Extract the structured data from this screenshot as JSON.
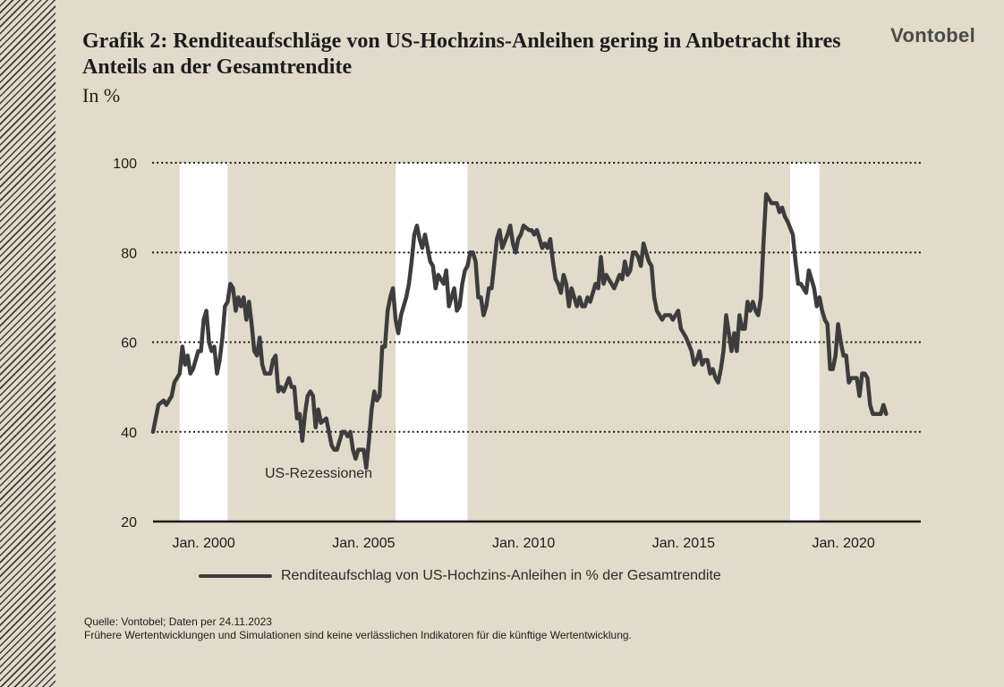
{
  "title": "Grafik 2: Renditeaufschläge von US-Hochzins-Anleihen gering in Anbetracht ihres Anteils an der Gesamtrendite",
  "subtitle": "In %",
  "logo": "Vontobel",
  "recession_label": "US-Rezessionen",
  "legend": {
    "series_label": "Renditeaufschlag von US-Hochzins-Anleihen in % der Gesamtrendite"
  },
  "source": {
    "line1": "Quelle: Vontobel; Daten per 24.11.2023",
    "line2": "Frühere Wertentwicklungen und Simulationen sind keine verlässlichen Indikatoren für die künftige Wertentwicklung."
  },
  "colors": {
    "background": "#e0dbca",
    "line": "#3d3d3d",
    "recession": "#ffffff",
    "grid": "#1c1c1c"
  },
  "chart_data": {
    "type": "line",
    "ylim": [
      20,
      100
    ],
    "yticks": [
      20,
      40,
      60,
      80,
      100
    ],
    "grid": "horizontal dotted",
    "legend_position": "bottom",
    "xlim": [
      "1998-06",
      "2022-06"
    ],
    "xticks": [
      {
        "date": "2000-01",
        "label": "Jan. 2000"
      },
      {
        "date": "2005-01",
        "label": "Jan. 2005"
      },
      {
        "date": "2010-01",
        "label": "Jan. 2010"
      },
      {
        "date": "2015-01",
        "label": "Jan. 2015"
      },
      {
        "date": "2020-01",
        "label": "Jan. 2020"
      }
    ],
    "recessions": [
      {
        "start": "1999-04",
        "end": "2000-10"
      },
      {
        "start": "2006-01",
        "end": "2008-04"
      },
      {
        "start": "2018-05",
        "end": "2019-04"
      }
    ],
    "series": [
      {
        "name": "Renditeaufschlag von US-Hochzins-Anleihen in % der Gesamtrendite",
        "points": [
          [
            "1998-06",
            40
          ],
          [
            "1998-08",
            46
          ],
          [
            "1998-10",
            47
          ],
          [
            "1998-11",
            46
          ],
          [
            "1999-01",
            48
          ],
          [
            "1999-02",
            51
          ],
          [
            "1999-04",
            53
          ],
          [
            "1999-05",
            59
          ],
          [
            "1999-06",
            55
          ],
          [
            "1999-07",
            57
          ],
          [
            "1999-08",
            53
          ],
          [
            "1999-09",
            54
          ],
          [
            "1999-11",
            58
          ],
          [
            "1999-12",
            58
          ],
          [
            "2000-01",
            65
          ],
          [
            "2000-02",
            67
          ],
          [
            "2000-03",
            60
          ],
          [
            "2000-04",
            58
          ],
          [
            "2000-05",
            59
          ],
          [
            "2000-06",
            53
          ],
          [
            "2000-07",
            56
          ],
          [
            "2000-08",
            61
          ],
          [
            "2000-09",
            68
          ],
          [
            "2000-10",
            69
          ],
          [
            "2000-11",
            73
          ],
          [
            "2000-12",
            72
          ],
          [
            "2001-01",
            67
          ],
          [
            "2001-02",
            70
          ],
          [
            "2001-03",
            68
          ],
          [
            "2001-04",
            70
          ],
          [
            "2001-05",
            65
          ],
          [
            "2001-06",
            69
          ],
          [
            "2001-07",
            64
          ],
          [
            "2001-08",
            58
          ],
          [
            "2001-09",
            57
          ],
          [
            "2001-10",
            61
          ],
          [
            "2001-11",
            55
          ],
          [
            "2001-12",
            53
          ],
          [
            "2002-02",
            53
          ],
          [
            "2002-03",
            56
          ],
          [
            "2002-04",
            57
          ],
          [
            "2002-05",
            49
          ],
          [
            "2002-06",
            50
          ],
          [
            "2002-07",
            49
          ],
          [
            "2002-09",
            52
          ],
          [
            "2002-10",
            50
          ],
          [
            "2002-11",
            50
          ],
          [
            "2002-12",
            43
          ],
          [
            "2003-01",
            44
          ],
          [
            "2003-02",
            38
          ],
          [
            "2003-03",
            44
          ],
          [
            "2003-04",
            48
          ],
          [
            "2003-05",
            49
          ],
          [
            "2003-06",
            48
          ],
          [
            "2003-07",
            41
          ],
          [
            "2003-08",
            45
          ],
          [
            "2003-09",
            42
          ],
          [
            "2003-11",
            43
          ],
          [
            "2003-12",
            40
          ],
          [
            "2004-01",
            37
          ],
          [
            "2004-02",
            36
          ],
          [
            "2004-03",
            36
          ],
          [
            "2004-04",
            38
          ],
          [
            "2004-05",
            40
          ],
          [
            "2004-06",
            40
          ],
          [
            "2004-07",
            39
          ],
          [
            "2004-08",
            40
          ],
          [
            "2004-09",
            36
          ],
          [
            "2004-10",
            34
          ],
          [
            "2004-11",
            36
          ],
          [
            "2005-01",
            36
          ],
          [
            "2005-02",
            32
          ],
          [
            "2005-03",
            38
          ],
          [
            "2005-04",
            45
          ],
          [
            "2005-05",
            49
          ],
          [
            "2005-06",
            47
          ],
          [
            "2005-07",
            48
          ],
          [
            "2005-08",
            59
          ],
          [
            "2005-09",
            59
          ],
          [
            "2005-10",
            67
          ],
          [
            "2005-11",
            70
          ],
          [
            "2005-12",
            72
          ],
          [
            "2006-01",
            65
          ],
          [
            "2006-02",
            62
          ],
          [
            "2006-03",
            66
          ],
          [
            "2006-05",
            70
          ],
          [
            "2006-06",
            73
          ],
          [
            "2006-07",
            78
          ],
          [
            "2006-08",
            84
          ],
          [
            "2006-09",
            86
          ],
          [
            "2006-10",
            83
          ],
          [
            "2006-11",
            81
          ],
          [
            "2006-12",
            84
          ],
          [
            "2007-01",
            81
          ],
          [
            "2007-02",
            78
          ],
          [
            "2007-03",
            77
          ],
          [
            "2007-04",
            72
          ],
          [
            "2007-05",
            75
          ],
          [
            "2007-06",
            74
          ],
          [
            "2007-07",
            73
          ],
          [
            "2007-08",
            76
          ],
          [
            "2007-09",
            68
          ],
          [
            "2007-10",
            70
          ],
          [
            "2007-11",
            72
          ],
          [
            "2007-12",
            67
          ],
          [
            "2008-01",
            68
          ],
          [
            "2008-02",
            73
          ],
          [
            "2008-03",
            76
          ],
          [
            "2008-04",
            77
          ],
          [
            "2008-05",
            80
          ],
          [
            "2008-06",
            80
          ],
          [
            "2008-07",
            78
          ],
          [
            "2008-08",
            70
          ],
          [
            "2008-09",
            70
          ],
          [
            "2008-10",
            66
          ],
          [
            "2008-11",
            68
          ],
          [
            "2008-12",
            72
          ],
          [
            "2009-01",
            72
          ],
          [
            "2009-03",
            83
          ],
          [
            "2009-04",
            85
          ],
          [
            "2009-05",
            81
          ],
          [
            "2009-07",
            84
          ],
          [
            "2009-08",
            86
          ],
          [
            "2009-09",
            82
          ],
          [
            "2009-10",
            80
          ],
          [
            "2009-11",
            83
          ],
          [
            "2009-12",
            84
          ],
          [
            "2010-01",
            86
          ],
          [
            "2010-03",
            85
          ],
          [
            "2010-04",
            85
          ],
          [
            "2010-05",
            84
          ],
          [
            "2010-06",
            85
          ],
          [
            "2010-08",
            81
          ],
          [
            "2010-09",
            82
          ],
          [
            "2010-10",
            81
          ],
          [
            "2010-11",
            83
          ],
          [
            "2010-12",
            78
          ],
          [
            "2011-01",
            74
          ],
          [
            "2011-02",
            73
          ],
          [
            "2011-03",
            71
          ],
          [
            "2011-04",
            75
          ],
          [
            "2011-05",
            73
          ],
          [
            "2011-06",
            68
          ],
          [
            "2011-07",
            72
          ],
          [
            "2011-08",
            70
          ],
          [
            "2011-09",
            68
          ],
          [
            "2011-10",
            70
          ],
          [
            "2011-11",
            68
          ],
          [
            "2011-12",
            68
          ],
          [
            "2012-01",
            70
          ],
          [
            "2012-02",
            69
          ],
          [
            "2012-04",
            73
          ],
          [
            "2012-05",
            72
          ],
          [
            "2012-06",
            79
          ],
          [
            "2012-07",
            73
          ],
          [
            "2012-08",
            75
          ],
          [
            "2012-09",
            74
          ],
          [
            "2012-10",
            73
          ],
          [
            "2012-11",
            72
          ],
          [
            "2013-01",
            75
          ],
          [
            "2013-02",
            74
          ],
          [
            "2013-03",
            78
          ],
          [
            "2013-04",
            75
          ],
          [
            "2013-05",
            76
          ],
          [
            "2013-06",
            80
          ],
          [
            "2013-07",
            80
          ],
          [
            "2013-08",
            79
          ],
          [
            "2013-09",
            77
          ],
          [
            "2013-10",
            82
          ],
          [
            "2013-11",
            80
          ],
          [
            "2013-12",
            78
          ],
          [
            "2014-01",
            77
          ],
          [
            "2014-02",
            70
          ],
          [
            "2014-03",
            67
          ],
          [
            "2014-04",
            66
          ],
          [
            "2014-05",
            65
          ],
          [
            "2014-06",
            66
          ],
          [
            "2014-07",
            66
          ],
          [
            "2014-08",
            66
          ],
          [
            "2014-09",
            65
          ],
          [
            "2014-10",
            66
          ],
          [
            "2014-11",
            67
          ],
          [
            "2014-12",
            63
          ],
          [
            "2015-01",
            62
          ],
          [
            "2015-02",
            61
          ],
          [
            "2015-04",
            58
          ],
          [
            "2015-05",
            55
          ],
          [
            "2015-06",
            56
          ],
          [
            "2015-07",
            58
          ],
          [
            "2015-08",
            55
          ],
          [
            "2015-09",
            56
          ],
          [
            "2015-10",
            56
          ],
          [
            "2015-11",
            53
          ],
          [
            "2015-12",
            54
          ],
          [
            "2016-01",
            52
          ],
          [
            "2016-02",
            51
          ],
          [
            "2016-03",
            54
          ],
          [
            "2016-04",
            58
          ],
          [
            "2016-05",
            66
          ],
          [
            "2016-06",
            62
          ],
          [
            "2016-07",
            58
          ],
          [
            "2016-08",
            62
          ],
          [
            "2016-09",
            58
          ],
          [
            "2016-10",
            66
          ],
          [
            "2016-11",
            63
          ],
          [
            "2016-12",
            63
          ],
          [
            "2017-01",
            69
          ],
          [
            "2017-02",
            67
          ],
          [
            "2017-03",
            69
          ],
          [
            "2017-04",
            67
          ],
          [
            "2017-05",
            66
          ],
          [
            "2017-06",
            70
          ],
          [
            "2017-07",
            82
          ],
          [
            "2017-08",
            93
          ],
          [
            "2017-09",
            92
          ],
          [
            "2017-10",
            91
          ],
          [
            "2017-12",
            91
          ],
          [
            "2018-01",
            89
          ],
          [
            "2018-02",
            90
          ],
          [
            "2018-03",
            88
          ],
          [
            "2018-04",
            87
          ],
          [
            "2018-06",
            84
          ],
          [
            "2018-07",
            78
          ],
          [
            "2018-08",
            73
          ],
          [
            "2018-09",
            73
          ],
          [
            "2018-10",
            72
          ],
          [
            "2018-11",
            71
          ],
          [
            "2018-12",
            76
          ],
          [
            "2019-01",
            74
          ],
          [
            "2019-02",
            72
          ],
          [
            "2019-03",
            68
          ],
          [
            "2019-04",
            70
          ],
          [
            "2019-05",
            67
          ],
          [
            "2019-06",
            65
          ],
          [
            "2019-07",
            64
          ],
          [
            "2019-08",
            54
          ],
          [
            "2019-09",
            54
          ],
          [
            "2019-10",
            57
          ],
          [
            "2019-11",
            64
          ],
          [
            "2019-12",
            60
          ],
          [
            "2020-01",
            57
          ],
          [
            "2020-02",
            57
          ],
          [
            "2020-03",
            51
          ],
          [
            "2020-04",
            52
          ],
          [
            "2020-05",
            52
          ],
          [
            "2020-06",
            52
          ],
          [
            "2020-07",
            48
          ],
          [
            "2020-08",
            53
          ],
          [
            "2020-09",
            53
          ],
          [
            "2020-10",
            52
          ],
          [
            "2020-11",
            46
          ],
          [
            "2020-12",
            44
          ],
          [
            "2021-01",
            44
          ],
          [
            "2021-03",
            44
          ],
          [
            "2021-04",
            46
          ],
          [
            "2021-05",
            44
          ]
        ]
      }
    ]
  }
}
